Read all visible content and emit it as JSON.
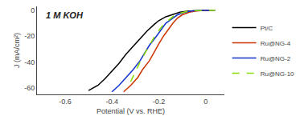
{
  "chart_data": {
    "type": "line",
    "title": "1 M KOH",
    "x_label": "Potential (V vs. RHE)",
    "y_label": "J (mA/cm²)",
    "xlim": [
      -0.72,
      0.08
    ],
    "ylim": [
      -65,
      3
    ],
    "xticks": [
      -0.6,
      -0.4,
      -0.2,
      0.0
    ],
    "yticks": [
      0,
      -20,
      -40,
      -60
    ],
    "grid": false,
    "legend": "right",
    "series": [
      {
        "name": "Pt/C",
        "color": "black",
        "line_style": "solid",
        "x": [
          -0.5,
          -0.46,
          -0.43,
          -0.4,
          -0.37,
          -0.34,
          -0.31,
          -0.28,
          -0.25,
          -0.22,
          -0.2,
          -0.17,
          -0.14,
          -0.11,
          -0.08,
          -0.05,
          -0.02,
          0.02
        ],
        "values": [
          -62,
          -58,
          -53,
          -47,
          -41,
          -34,
          -28,
          -22,
          -16,
          -11,
          -8,
          -5,
          -3,
          -1.5,
          -0.7,
          -0.3,
          -0.1,
          0
        ]
      },
      {
        "name": "Ru@NG-4",
        "color": "#cc3300",
        "line_style": "solid",
        "x": [
          -0.35,
          -0.32,
          -0.29,
          -0.27,
          -0.24,
          -0.22,
          -0.2,
          -0.18,
          -0.16,
          -0.14,
          -0.12,
          -0.1,
          -0.07,
          -0.04,
          -0.01,
          0.04
        ],
        "values": [
          -63,
          -58,
          -52,
          -46,
          -39,
          -32,
          -26,
          -20,
          -15,
          -10,
          -6,
          -3.5,
          -1.5,
          -0.5,
          -0.1,
          0
        ]
      },
      {
        "name": "Ru@NG-2",
        "color": "#1133cc",
        "line_style": "solid",
        "x": [
          -0.4,
          -0.37,
          -0.34,
          -0.31,
          -0.28,
          -0.26,
          -0.24,
          -0.21,
          -0.19,
          -0.17,
          -0.14,
          -0.12,
          -0.09,
          -0.06,
          -0.03,
          0.04
        ],
        "values": [
          -63,
          -58,
          -52,
          -46,
          -39,
          -33,
          -27,
          -20,
          -15,
          -10,
          -6,
          -3.5,
          -1.5,
          -0.5,
          -0.1,
          0
        ]
      },
      {
        "name": "Ru@NG-10",
        "color": "#88dd00",
        "line_style": "dashed",
        "x": [
          -0.32,
          -0.28,
          -0.24,
          -0.21,
          -0.18,
          -0.15,
          -0.13,
          -0.1,
          -0.08,
          -0.05,
          -0.02,
          0.04
        ],
        "values": [
          -55,
          -40,
          -27,
          -18,
          -11,
          -6.5,
          -3.5,
          -1.8,
          -0.9,
          -0.3,
          -0.1,
          0
        ]
      }
    ]
  }
}
